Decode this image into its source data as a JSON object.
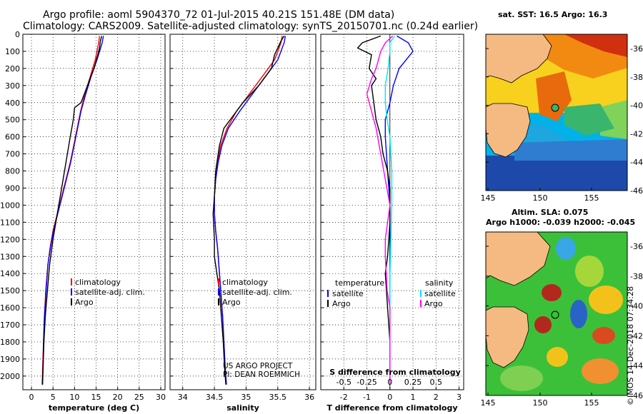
{
  "header": {
    "title_line1": "Argo profile: aoml 5904370_72 01-Jul-2015 40.21S 151.48E (DM data)",
    "title_line2": "Climatology: CARS2009. Satellite-adjusted climatology: synTS_20150701.nc (0.24d earlier)"
  },
  "maps": {
    "sst_title": "sat. SST: 16.5 Argo: 16.3",
    "sla_title_1": "Altim. SLA: 0.075",
    "sla_title_2": "Argo h1000: -0.039 h2000: -0.045",
    "lat_ticks": [
      "-36",
      "-38",
      "-40",
      "-42",
      "-44",
      "-46"
    ],
    "lon_ticks": [
      "145",
      "150",
      "155"
    ],
    "float_position": {
      "lon": 151.48,
      "lat": -40.21
    }
  },
  "credit": "©IMOS 14-Dec-2018 07:34:28",
  "colors": {
    "climatology": "#ff0000",
    "satellite": "#0000ff",
    "argo": "#000000",
    "salinity_clim": "#ff00ff",
    "salinity_sat": "#00e5ff"
  },
  "chart_data": [
    {
      "type": "line",
      "xlabel": "temperature (deg C)",
      "ylabel": "",
      "xlim": [
        -2,
        31
      ],
      "ylim": [
        2080,
        0
      ],
      "xticks": [
        "0",
        "5",
        "10",
        "15",
        "20",
        "25",
        "30"
      ],
      "xtick_values": [
        0,
        5,
        10,
        15,
        20,
        25,
        30
      ],
      "yticks": [
        "0",
        "100",
        "200",
        "300",
        "400",
        "500",
        "600",
        "700",
        "800",
        "900",
        "1000",
        "1100",
        "1200",
        "1300",
        "1400",
        "1500",
        "1600",
        "1700",
        "1800",
        "1900",
        "2000"
      ],
      "grid": true,
      "legend_position": "lower-middle",
      "series": [
        {
          "name": "climatology",
          "color": "#ff0000",
          "x": [
            15.8,
            15.6,
            14.8,
            13.6,
            12.4,
            11.4,
            10.6,
            9.8,
            9.0,
            8.0,
            7.0,
            6.0,
            5.0,
            4.3,
            3.8,
            3.3,
            3.0,
            2.8,
            2.6,
            2.5
          ],
          "y": [
            10,
            50,
            150,
            250,
            350,
            450,
            550,
            650,
            750,
            850,
            950,
            1050,
            1150,
            1250,
            1350,
            1500,
            1650,
            1800,
            1950,
            2050
          ]
        },
        {
          "name": "satellite-adj. clim.",
          "color": "#0000ff",
          "x": [
            16.7,
            16.4,
            15.2,
            13.8,
            12.6,
            11.5,
            10.7,
            9.9,
            9.1,
            8.1,
            7.1,
            6.1,
            5.1,
            4.4,
            3.8,
            3.4,
            3.0,
            2.8,
            2.7,
            2.6
          ],
          "y": [
            10,
            50,
            150,
            250,
            350,
            450,
            550,
            650,
            750,
            850,
            950,
            1050,
            1150,
            1250,
            1350,
            1500,
            1650,
            1800,
            1950,
            2050
          ]
        },
        {
          "name": "Argo",
          "color": "#000000",
          "x": [
            16.3,
            16.0,
            15.8,
            15.4,
            14.5,
            13.0,
            11.5,
            10.0,
            9.7,
            9.0,
            8.0,
            7.0,
            6.0,
            5.0,
            4.2,
            3.7,
            3.2,
            2.9,
            2.7,
            2.5
          ],
          "y": [
            10,
            40,
            80,
            120,
            200,
            300,
            400,
            430,
            500,
            600,
            750,
            900,
            1050,
            1200,
            1350,
            1500,
            1650,
            1800,
            1950,
            2050
          ]
        }
      ]
    },
    {
      "type": "line",
      "xlabel": "salinity",
      "ylabel": "",
      "xlim": [
        33.8,
        36.1
      ],
      "ylim": [
        2080,
        0
      ],
      "xticks": [
        "34",
        "34.5",
        "35",
        "35.5",
        "36"
      ],
      "xtick_values": [
        34,
        34.5,
        35,
        35.5,
        36
      ],
      "grid": true,
      "legend_position": "lower-middle",
      "annotation": [
        "US ARGO PROJECT",
        "PI: DEAN ROEMMICH"
      ],
      "series": [
        {
          "name": "climatology",
          "color": "#ff0000",
          "x": [
            35.57,
            35.55,
            35.45,
            35.25,
            35.05,
            34.85,
            34.7,
            34.6,
            34.55,
            34.52,
            34.5,
            34.5,
            34.52,
            34.55,
            34.57,
            34.6,
            34.63,
            34.65,
            34.67,
            34.69
          ],
          "y": [
            10,
            50,
            150,
            250,
            350,
            450,
            550,
            650,
            750,
            850,
            950,
            1050,
            1150,
            1250,
            1350,
            1500,
            1650,
            1800,
            1950,
            2050
          ]
        },
        {
          "name": "satellite-adj. clim.",
          "color": "#0000ff",
          "x": [
            35.62,
            35.6,
            35.5,
            35.3,
            35.1,
            34.9,
            34.72,
            34.62,
            34.56,
            34.52,
            34.5,
            34.5,
            34.52,
            34.55,
            34.57,
            34.6,
            34.63,
            34.65,
            34.67,
            34.69
          ],
          "y": [
            10,
            50,
            150,
            250,
            350,
            450,
            550,
            650,
            750,
            850,
            950,
            1050,
            1150,
            1250,
            1350,
            1500,
            1650,
            1800,
            1950,
            2050
          ]
        },
        {
          "name": "Argo",
          "color": "#000000",
          "x": [
            35.6,
            35.55,
            35.5,
            35.45,
            35.4,
            35.2,
            34.95,
            34.75,
            34.65,
            34.58,
            34.52,
            34.5,
            34.48,
            34.5,
            34.5,
            34.54,
            34.58,
            34.61,
            34.64,
            34.66,
            34.68
          ],
          "y": [
            10,
            40,
            80,
            120,
            200,
            300,
            400,
            500,
            550,
            650,
            800,
            950,
            1050,
            1200,
            1300,
            1400,
            1500,
            1650,
            1800,
            1950,
            2050
          ]
        }
      ]
    },
    {
      "type": "line",
      "xlabel": "T difference from climatology",
      "xlabel_top": "S difference from climatology",
      "xlim": [
        -3,
        3.2
      ],
      "ylim": [
        2080,
        0
      ],
      "xticks": [
        "-2",
        "-1",
        "0",
        "1",
        "2",
        "3"
      ],
      "xtick_values": [
        -2,
        -1,
        0,
        1,
        2,
        3
      ],
      "s_ticks": [
        "-0.5",
        "-0.25",
        "0",
        "0.25",
        "0.5"
      ],
      "s_tick_values": [
        -0.5,
        -0.25,
        0,
        0.25,
        0.5
      ],
      "grid": true,
      "legend_left_title": "temperature",
      "legend_right_title": "salinity",
      "series": [
        {
          "name": "satellite",
          "group": "temperature",
          "color": "#0000ff",
          "x": [
            0.3,
            0.8,
            1.0,
            0.7,
            0.4,
            0.15,
            0.0,
            -0.2,
            -0.2,
            -0.15,
            -0.1,
            -0.05,
            0.0,
            0.0,
            0.0,
            0.0,
            0.0,
            0.0,
            0.0
          ],
          "y": [
            10,
            50,
            100,
            150,
            200,
            300,
            400,
            500,
            600,
            700,
            800,
            900,
            1000,
            1200,
            1400,
            1600,
            1800,
            1950,
            2050
          ]
        },
        {
          "name": "Argo",
          "group": "temperature",
          "color": "#000000",
          "x": [
            -0.4,
            -1.2,
            -1.4,
            -0.8,
            -0.9,
            -0.6,
            -0.8,
            -0.7,
            -0.6,
            -0.4,
            -0.3,
            -0.1,
            0.0,
            0.0,
            -0.05,
            -0.1,
            -0.2,
            -0.15,
            -0.1,
            0.0,
            0.0
          ],
          "y": [
            10,
            50,
            80,
            120,
            200,
            260,
            300,
            400,
            500,
            600,
            700,
            800,
            900,
            1100,
            1200,
            1300,
            1400,
            1500,
            1600,
            1800,
            2050
          ]
        },
        {
          "name": "satellite",
          "group": "salinity",
          "color": "#00e5ff",
          "x": [
            0.05,
            0.0,
            0.0,
            -0.02,
            -0.05,
            -0.05,
            -0.03,
            0.0,
            0.02,
            0.02,
            0.01,
            0.0,
            0.0,
            0.0,
            0.0,
            0.0
          ],
          "y": [
            10,
            50,
            100,
            200,
            300,
            400,
            500,
            600,
            800,
            1000,
            1200,
            1400,
            1600,
            1800,
            1950,
            2050
          ]
        },
        {
          "name": "Argo",
          "group": "salinity",
          "color": "#ff00ff",
          "x": [
            0.03,
            -0.05,
            -0.1,
            -0.15,
            -0.2,
            -0.25,
            -0.2,
            -0.15,
            -0.1,
            -0.05,
            0.0,
            -0.05,
            -0.05,
            -0.03,
            0.0,
            0.0,
            0.0
          ],
          "y": [
            10,
            50,
            100,
            200,
            260,
            350,
            450,
            550,
            700,
            850,
            1000,
            1200,
            1300,
            1500,
            1600,
            1800,
            2050
          ]
        }
      ]
    }
  ]
}
